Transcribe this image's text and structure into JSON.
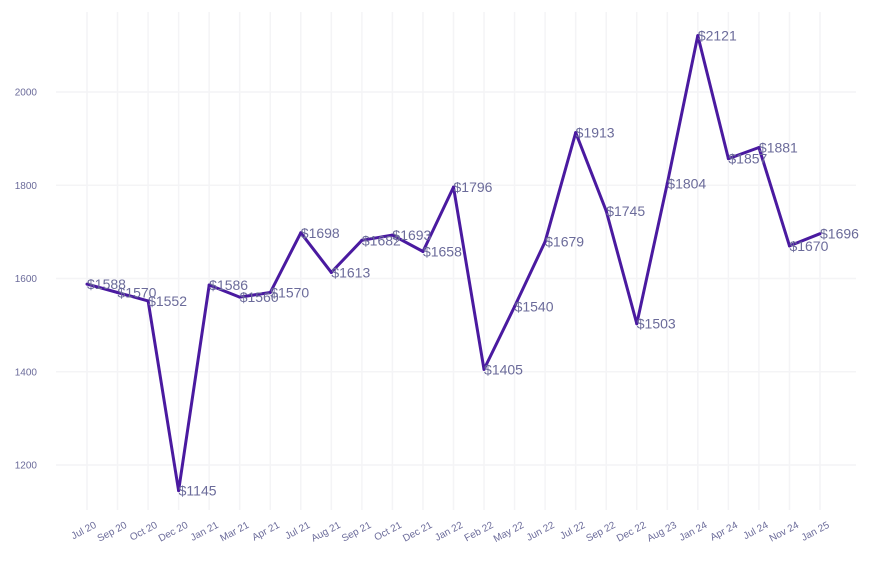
{
  "chart_data": {
    "type": "line",
    "title": "",
    "xlabel": "",
    "ylabel": "",
    "categories": [
      "Jul 20",
      "Sep 20",
      "Oct 20",
      "Dec 20",
      "Jan 21",
      "Mar 21",
      "Apr 21",
      "Jul 21",
      "Aug 21",
      "Sep 21",
      "Oct 21",
      "Dec 21",
      "Jan 22",
      "Feb 22",
      "May 22",
      "Jun 22",
      "Jul 22",
      "Sep 22",
      "Dec 22",
      "Aug 23",
      "Jan 24",
      "Apr 24",
      "Jul 24",
      "Nov 24",
      "Jan 25"
    ],
    "values": [
      1588,
      1570,
      1552,
      1145,
      1586,
      1560,
      1570,
      1698,
      1613,
      1682,
      1693,
      1658,
      1796,
      1405,
      1540,
      1679,
      1913,
      1745,
      1503,
      1804,
      2121,
      1857,
      1881,
      1670,
      1696
    ],
    "data_labels": [
      "$1588",
      "$1570",
      "$1552",
      "$1145",
      "$1586",
      "$1560",
      "$1570",
      "$1698",
      "$1613",
      "$1682",
      "$1693",
      "$1658",
      "$1796",
      "$1405",
      "$1540",
      "$1679",
      "$1913",
      "$1745",
      "$1503",
      "$1804",
      "$2121",
      "$1857",
      "$1881",
      "$1670",
      "$1696"
    ],
    "y_ticks": [
      1200,
      1400,
      1600,
      1800,
      2000
    ],
    "ylim": [
      1100,
      2150
    ],
    "grid": true,
    "legend": "none",
    "line_color": "#4a1aa0",
    "label_color": "#6b6b9a"
  }
}
